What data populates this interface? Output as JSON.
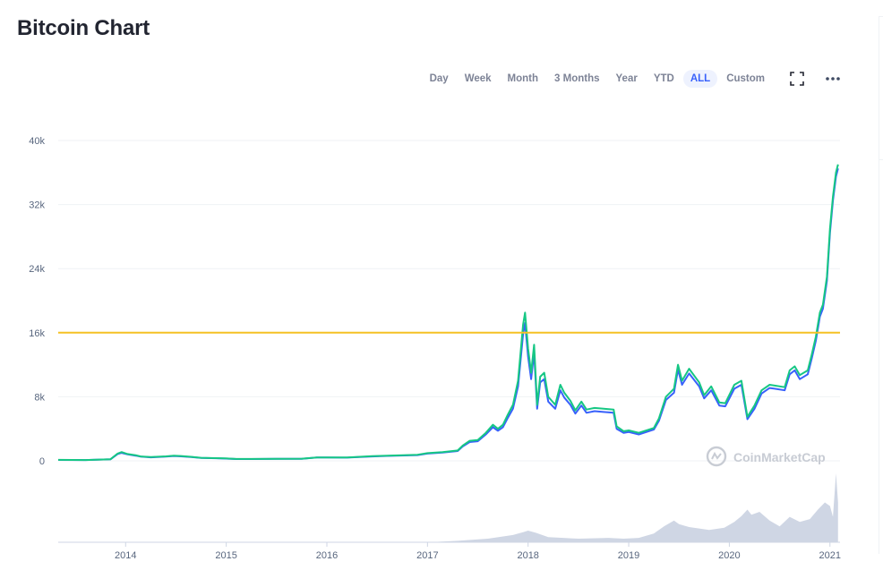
{
  "page": {
    "title": "Bitcoin Chart"
  },
  "range_buttons": [
    {
      "label": "Day",
      "active": false
    },
    {
      "label": "Week",
      "active": false
    },
    {
      "label": "Month",
      "active": false
    },
    {
      "label": "3 Months",
      "active": false
    },
    {
      "label": "Year",
      "active": false
    },
    {
      "label": "YTD",
      "active": false
    },
    {
      "label": "ALL",
      "active": true
    },
    {
      "label": "Custom",
      "active": false
    }
  ],
  "toolbar_icons": [
    "fullscreen-icon",
    "more-icon"
  ],
  "watermark": "CoinMarketCap",
  "colors": {
    "price": "#16c784",
    "market_cap": "#3861fb",
    "reference_line": "#f5c125",
    "volume": "#cfd6e4",
    "grid": "#eff2f5",
    "accent": "#3861fb"
  },
  "chart_data": {
    "type": "line",
    "title": "Bitcoin Chart",
    "xlim": [
      2013.33,
      2021.1
    ],
    "ylim": [
      0,
      40000
    ],
    "y_ticks": [
      {
        "value": 0,
        "label": "0"
      },
      {
        "value": 8000,
        "label": "8k"
      },
      {
        "value": 16000,
        "label": "16k"
      },
      {
        "value": 24000,
        "label": "24k"
      },
      {
        "value": 32000,
        "label": "32k"
      },
      {
        "value": 40000,
        "label": "40k"
      }
    ],
    "x_ticks": [
      {
        "value": 2014,
        "label": "2014"
      },
      {
        "value": 2015,
        "label": "2015"
      },
      {
        "value": 2016,
        "label": "2016"
      },
      {
        "value": 2017,
        "label": "2017"
      },
      {
        "value": 2018,
        "label": "2018"
      },
      {
        "value": 2019,
        "label": "2019"
      },
      {
        "value": 2020,
        "label": "2020"
      },
      {
        "value": 2021,
        "label": "2021"
      }
    ],
    "reference_line": 16000,
    "grid": true,
    "series": [
      {
        "color": "#16c784",
        "points": [
          [
            2013.33,
            120
          ],
          [
            2013.6,
            100
          ],
          [
            2013.85,
            200
          ],
          [
            2013.92,
            900
          ],
          [
            2013.96,
            1100
          ],
          [
            2014.02,
            850
          ],
          [
            2014.1,
            700
          ],
          [
            2014.15,
            550
          ],
          [
            2014.25,
            470
          ],
          [
            2014.4,
            560
          ],
          [
            2014.48,
            640
          ],
          [
            2014.55,
            600
          ],
          [
            2014.65,
            500
          ],
          [
            2014.75,
            380
          ],
          [
            2014.9,
            340
          ],
          [
            2015.0,
            300
          ],
          [
            2015.1,
            230
          ],
          [
            2015.25,
            230
          ],
          [
            2015.5,
            260
          ],
          [
            2015.75,
            270
          ],
          [
            2015.9,
            430
          ],
          [
            2016.0,
            430
          ],
          [
            2016.2,
            420
          ],
          [
            2016.45,
            580
          ],
          [
            2016.6,
            650
          ],
          [
            2016.9,
            760
          ],
          [
            2017.0,
            960
          ],
          [
            2017.15,
            1100
          ],
          [
            2017.3,
            1300
          ],
          [
            2017.35,
            1900
          ],
          [
            2017.42,
            2500
          ],
          [
            2017.5,
            2600
          ],
          [
            2017.58,
            3500
          ],
          [
            2017.65,
            4500
          ],
          [
            2017.7,
            4000
          ],
          [
            2017.75,
            4500
          ],
          [
            2017.8,
            5800
          ],
          [
            2017.85,
            7000
          ],
          [
            2017.9,
            10000
          ],
          [
            2017.95,
            17000
          ],
          [
            2017.97,
            18500
          ],
          [
            2018.0,
            14000
          ],
          [
            2018.03,
            11000
          ],
          [
            2018.06,
            14500
          ],
          [
            2018.09,
            7000
          ],
          [
            2018.12,
            10500
          ],
          [
            2018.16,
            11000
          ],
          [
            2018.2,
            8000
          ],
          [
            2018.27,
            7000
          ],
          [
            2018.32,
            9500
          ],
          [
            2018.36,
            8500
          ],
          [
            2018.42,
            7500
          ],
          [
            2018.47,
            6300
          ],
          [
            2018.53,
            7400
          ],
          [
            2018.58,
            6400
          ],
          [
            2018.66,
            6600
          ],
          [
            2018.75,
            6500
          ],
          [
            2018.85,
            6400
          ],
          [
            2018.88,
            4300
          ],
          [
            2018.95,
            3700
          ],
          [
            2019.0,
            3800
          ],
          [
            2019.1,
            3500
          ],
          [
            2019.25,
            4100
          ],
          [
            2019.3,
            5300
          ],
          [
            2019.37,
            8000
          ],
          [
            2019.45,
            9000
          ],
          [
            2019.49,
            12000
          ],
          [
            2019.53,
            10000
          ],
          [
            2019.6,
            11500
          ],
          [
            2019.7,
            9800
          ],
          [
            2019.75,
            8200
          ],
          [
            2019.82,
            9300
          ],
          [
            2019.9,
            7300
          ],
          [
            2019.96,
            7200
          ],
          [
            2020.05,
            9500
          ],
          [
            2020.12,
            10000
          ],
          [
            2020.18,
            5500
          ],
          [
            2020.25,
            6900
          ],
          [
            2020.32,
            8800
          ],
          [
            2020.4,
            9500
          ],
          [
            2020.45,
            9400
          ],
          [
            2020.55,
            9200
          ],
          [
            2020.6,
            11300
          ],
          [
            2020.65,
            11800
          ],
          [
            2020.7,
            10700
          ],
          [
            2020.78,
            11300
          ],
          [
            2020.82,
            13300
          ],
          [
            2020.86,
            15500
          ],
          [
            2020.9,
            18500
          ],
          [
            2020.93,
            19500
          ],
          [
            2020.97,
            23000
          ],
          [
            2021.0,
            29000
          ],
          [
            2021.03,
            33000
          ],
          [
            2021.06,
            36000
          ],
          [
            2021.08,
            37000
          ]
        ]
      },
      {
        "color": "#3861fb",
        "points": [
          [
            2013.33,
            110
          ],
          [
            2013.6,
            95
          ],
          [
            2013.85,
            190
          ],
          [
            2013.92,
            850
          ],
          [
            2013.96,
            1000
          ],
          [
            2014.02,
            800
          ],
          [
            2014.1,
            650
          ],
          [
            2014.15,
            520
          ],
          [
            2014.25,
            440
          ],
          [
            2014.4,
            530
          ],
          [
            2014.48,
            600
          ],
          [
            2014.55,
            560
          ],
          [
            2014.65,
            470
          ],
          [
            2014.75,
            360
          ],
          [
            2014.9,
            320
          ],
          [
            2015.0,
            280
          ],
          [
            2015.1,
            220
          ],
          [
            2015.25,
            220
          ],
          [
            2015.5,
            250
          ],
          [
            2015.75,
            260
          ],
          [
            2015.9,
            410
          ],
          [
            2016.0,
            410
          ],
          [
            2016.2,
            400
          ],
          [
            2016.45,
            550
          ],
          [
            2016.6,
            620
          ],
          [
            2016.9,
            720
          ],
          [
            2017.0,
            910
          ],
          [
            2017.15,
            1040
          ],
          [
            2017.3,
            1230
          ],
          [
            2017.35,
            1800
          ],
          [
            2017.42,
            2350
          ],
          [
            2017.5,
            2450
          ],
          [
            2017.58,
            3300
          ],
          [
            2017.65,
            4200
          ],
          [
            2017.7,
            3750
          ],
          [
            2017.75,
            4200
          ],
          [
            2017.8,
            5400
          ],
          [
            2017.85,
            6500
          ],
          [
            2017.9,
            9300
          ],
          [
            2017.95,
            15800
          ],
          [
            2017.97,
            17200
          ],
          [
            2018.0,
            13000
          ],
          [
            2018.03,
            10200
          ],
          [
            2018.06,
            13500
          ],
          [
            2018.09,
            6500
          ],
          [
            2018.12,
            9800
          ],
          [
            2018.16,
            10200
          ],
          [
            2018.2,
            7400
          ],
          [
            2018.27,
            6500
          ],
          [
            2018.32,
            8800
          ],
          [
            2018.36,
            7900
          ],
          [
            2018.42,
            7000
          ],
          [
            2018.47,
            5900
          ],
          [
            2018.53,
            6900
          ],
          [
            2018.58,
            6000
          ],
          [
            2018.66,
            6200
          ],
          [
            2018.75,
            6100
          ],
          [
            2018.85,
            6000
          ],
          [
            2018.88,
            4000
          ],
          [
            2018.95,
            3500
          ],
          [
            2019.0,
            3600
          ],
          [
            2019.1,
            3300
          ],
          [
            2019.25,
            3900
          ],
          [
            2019.3,
            5000
          ],
          [
            2019.37,
            7600
          ],
          [
            2019.45,
            8500
          ],
          [
            2019.49,
            11400
          ],
          [
            2019.53,
            9500
          ],
          [
            2019.6,
            10900
          ],
          [
            2019.7,
            9300
          ],
          [
            2019.75,
            7800
          ],
          [
            2019.82,
            8800
          ],
          [
            2019.9,
            6900
          ],
          [
            2019.96,
            6800
          ],
          [
            2020.05,
            9000
          ],
          [
            2020.12,
            9500
          ],
          [
            2020.18,
            5200
          ],
          [
            2020.25,
            6500
          ],
          [
            2020.32,
            8400
          ],
          [
            2020.4,
            9100
          ],
          [
            2020.45,
            9000
          ],
          [
            2020.55,
            8800
          ],
          [
            2020.6,
            10800
          ],
          [
            2020.65,
            11300
          ],
          [
            2020.7,
            10200
          ],
          [
            2020.78,
            10800
          ],
          [
            2020.82,
            12800
          ],
          [
            2020.86,
            15000
          ],
          [
            2020.9,
            18000
          ],
          [
            2020.93,
            19000
          ],
          [
            2020.97,
            22500
          ],
          [
            2021.0,
            28500
          ],
          [
            2021.03,
            32500
          ],
          [
            2021.06,
            35500
          ],
          [
            2021.08,
            36500
          ]
        ]
      }
    ],
    "volume": {
      "color": "#cfd6e4",
      "points": [
        [
          2013.33,
          0.0
        ],
        [
          2017.0,
          0.0
        ],
        [
          2017.3,
          0.02
        ],
        [
          2017.6,
          0.05
        ],
        [
          2017.85,
          0.1
        ],
        [
          2017.95,
          0.14
        ],
        [
          2018.0,
          0.16
        ],
        [
          2018.08,
          0.13
        ],
        [
          2018.2,
          0.07
        ],
        [
          2018.5,
          0.05
        ],
        [
          2018.8,
          0.06
        ],
        [
          2018.95,
          0.05
        ],
        [
          2019.1,
          0.06
        ],
        [
          2019.25,
          0.12
        ],
        [
          2019.35,
          0.22
        ],
        [
          2019.45,
          0.3
        ],
        [
          2019.5,
          0.25
        ],
        [
          2019.6,
          0.21
        ],
        [
          2019.8,
          0.17
        ],
        [
          2019.95,
          0.2
        ],
        [
          2020.05,
          0.28
        ],
        [
          2020.12,
          0.36
        ],
        [
          2020.18,
          0.45
        ],
        [
          2020.22,
          0.38
        ],
        [
          2020.3,
          0.42
        ],
        [
          2020.4,
          0.3
        ],
        [
          2020.5,
          0.22
        ],
        [
          2020.6,
          0.35
        ],
        [
          2020.7,
          0.28
        ],
        [
          2020.8,
          0.32
        ],
        [
          2020.88,
          0.45
        ],
        [
          2020.95,
          0.55
        ],
        [
          2021.0,
          0.5
        ],
        [
          2021.03,
          0.35
        ],
        [
          2021.06,
          0.95
        ],
        [
          2021.08,
          0.55
        ]
      ]
    }
  }
}
